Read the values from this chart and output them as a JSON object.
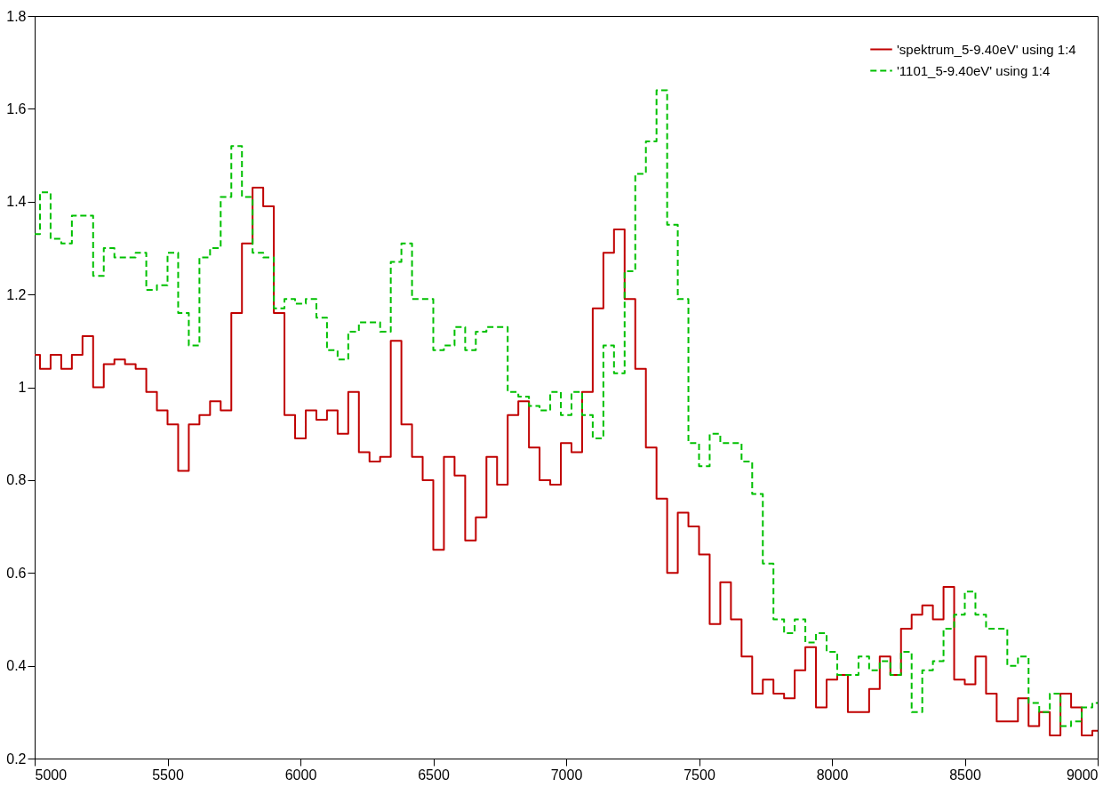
{
  "chart_data": {
    "type": "step",
    "x": [
      5000,
      5040,
      5080,
      5120,
      5160,
      5200,
      5240,
      5280,
      5320,
      5360,
      5400,
      5440,
      5480,
      5520,
      5560,
      5600,
      5640,
      5680,
      5720,
      5760,
      5800,
      5840,
      5880,
      5920,
      5960,
      6000,
      6040,
      6080,
      6120,
      6160,
      6200,
      6240,
      6280,
      6320,
      6360,
      6400,
      6440,
      6480,
      6520,
      6560,
      6600,
      6640,
      6680,
      6720,
      6760,
      6800,
      6840,
      6880,
      6920,
      6960,
      7000,
      7040,
      7080,
      7120,
      7160,
      7200,
      7240,
      7280,
      7320,
      7360,
      7400,
      7440,
      7480,
      7520,
      7560,
      7600,
      7640,
      7680,
      7720,
      7760,
      7800,
      7840,
      7880,
      7920,
      7960,
      8000,
      8040,
      8080,
      8120,
      8160,
      8200,
      8240,
      8280,
      8320,
      8360,
      8400,
      8440,
      8480,
      8520,
      8560,
      8600,
      8640,
      8680,
      8720,
      8760,
      8800,
      8840,
      8880,
      8920,
      8960,
      9000
    ],
    "series": [
      {
        "name": "'spektrum_5-9.40eV' using 1:4",
        "color": "#c00000",
        "line_style": "solid",
        "values": [
          1.07,
          1.04,
          1.07,
          1.04,
          1.07,
          1.11,
          1.0,
          1.05,
          1.06,
          1.05,
          1.04,
          0.99,
          0.95,
          0.92,
          0.82,
          0.92,
          0.94,
          0.97,
          0.95,
          1.16,
          1.31,
          1.43,
          1.39,
          1.16,
          0.94,
          0.89,
          0.95,
          0.93,
          0.95,
          0.9,
          0.99,
          0.86,
          0.84,
          0.85,
          1.1,
          0.92,
          0.85,
          0.8,
          0.65,
          0.85,
          0.81,
          0.67,
          0.72,
          0.85,
          0.79,
          0.94,
          0.97,
          0.87,
          0.8,
          0.79,
          0.88,
          0.86,
          0.99,
          1.17,
          1.29,
          1.34,
          1.19,
          1.04,
          0.87,
          0.76,
          0.6,
          0.73,
          0.7,
          0.64,
          0.49,
          0.58,
          0.5,
          0.42,
          0.34,
          0.37,
          0.34,
          0.33,
          0.39,
          0.44,
          0.31,
          0.37,
          0.38,
          0.3,
          0.3,
          0.35,
          0.42,
          0.38,
          0.48,
          0.51,
          0.53,
          0.5,
          0.57,
          0.37,
          0.36,
          0.42,
          0.34,
          0.28,
          0.28,
          0.33,
          0.27,
          0.3,
          0.25,
          0.34,
          0.31,
          0.25,
          0.26
        ]
      },
      {
        "name": "'1101_5-9.40eV' using 1:4",
        "color": "#00c000",
        "line_style": "dashed",
        "values": [
          1.33,
          1.42,
          1.32,
          1.31,
          1.37,
          1.37,
          1.24,
          1.3,
          1.28,
          1.28,
          1.29,
          1.21,
          1.22,
          1.29,
          1.16,
          1.09,
          1.28,
          1.3,
          1.41,
          1.52,
          1.41,
          1.29,
          1.28,
          1.17,
          1.19,
          1.18,
          1.19,
          1.15,
          1.08,
          1.06,
          1.12,
          1.14,
          1.14,
          1.12,
          1.27,
          1.31,
          1.19,
          1.19,
          1.08,
          1.09,
          1.13,
          1.08,
          1.12,
          1.13,
          1.13,
          0.99,
          0.98,
          0.96,
          0.95,
          0.99,
          0.94,
          0.99,
          0.94,
          0.89,
          1.09,
          1.03,
          1.25,
          1.46,
          1.53,
          1.64,
          1.35,
          1.19,
          0.88,
          0.83,
          0.9,
          0.88,
          0.88,
          0.84,
          0.77,
          0.62,
          0.5,
          0.47,
          0.5,
          0.45,
          0.47,
          0.43,
          0.38,
          0.38,
          0.42,
          0.39,
          0.41,
          0.38,
          0.43,
          0.3,
          0.39,
          0.41,
          0.48,
          0.51,
          0.56,
          0.51,
          0.48,
          0.48,
          0.4,
          0.42,
          0.32,
          0.3,
          0.34,
          0.27,
          0.28,
          0.31,
          0.32
        ]
      }
    ],
    "xlim": [
      5000,
      9000
    ],
    "xticks": [
      5000,
      5500,
      6000,
      6500,
      7000,
      7500,
      8000,
      8500,
      9000
    ],
    "ylim": [
      0.2,
      1.8
    ],
    "yticks": [
      0.2,
      0.4,
      0.6,
      0.8,
      1,
      1.2,
      1.4,
      1.6,
      1.8
    ],
    "legend": "top right"
  }
}
